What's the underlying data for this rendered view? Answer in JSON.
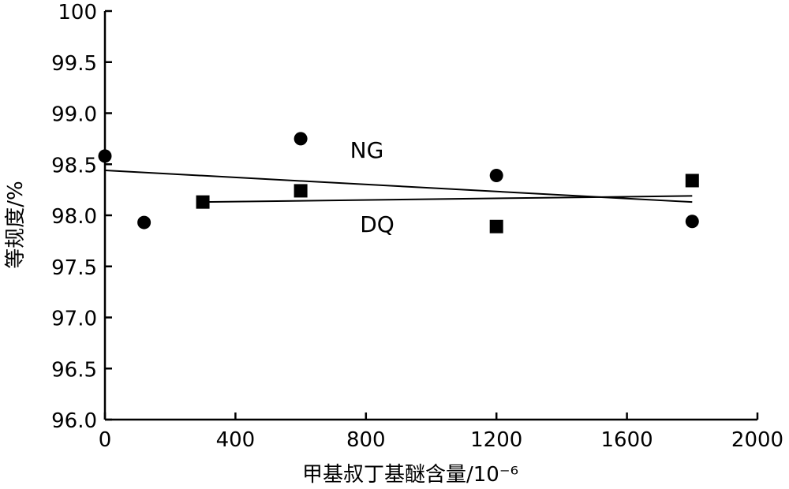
{
  "chart_data": {
    "type": "scatter",
    "xlabel": "甲基叔丁基醚含量/10⁻⁶",
    "ylabel": "等规度/%",
    "xlim": [
      0,
      2000
    ],
    "ylim": [
      96.0,
      100
    ],
    "x_ticks": [
      0,
      400,
      800,
      1200,
      1600,
      2000
    ],
    "x_tick_labels": [
      "0",
      "400",
      "800",
      "1200",
      "1600",
      "2000"
    ],
    "y_ticks": [
      96.0,
      96.5,
      97.0,
      97.5,
      98.0,
      98.5,
      99.0,
      99.5,
      100
    ],
    "y_tick_labels": [
      "96.0",
      "96.5",
      "97.0",
      "97.5",
      "98.0",
      "98.5",
      "99.0",
      "99.5",
      "100"
    ],
    "grid": false,
    "series": [
      {
        "name": "NG",
        "marker": "circle",
        "points": [
          {
            "x": 0,
            "y": 98.58
          },
          {
            "x": 120,
            "y": 97.93
          },
          {
            "x": 600,
            "y": 98.75
          },
          {
            "x": 1200,
            "y": 98.39
          },
          {
            "x": 1800,
            "y": 97.94
          }
        ],
        "fit": [
          {
            "x": 0,
            "y": 98.44
          },
          {
            "x": 1800,
            "y": 98.13
          }
        ]
      },
      {
        "name": "DQ",
        "marker": "square",
        "points": [
          {
            "x": 300,
            "y": 98.13
          },
          {
            "x": 600,
            "y": 98.24
          },
          {
            "x": 1200,
            "y": 97.89
          },
          {
            "x": 1800,
            "y": 98.34
          }
        ],
        "fit": [
          {
            "x": 300,
            "y": 98.13
          },
          {
            "x": 1800,
            "y": 98.19
          }
        ]
      }
    ]
  }
}
